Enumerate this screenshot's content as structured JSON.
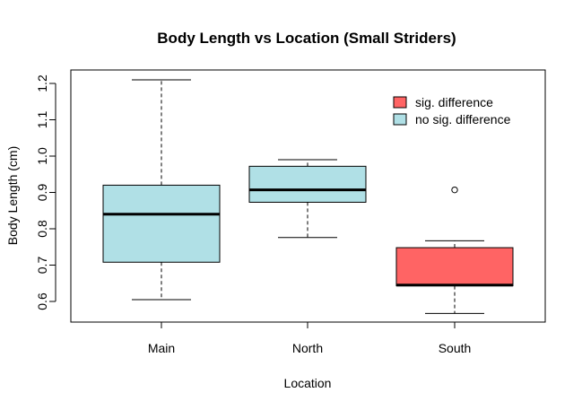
{
  "chart_data": {
    "type": "boxplot",
    "title": "Body Length vs Location (Small Striders)",
    "xlabel": "Location",
    "ylabel": "Body Length (cm)",
    "ylim": [
      0.56,
      1.22
    ],
    "yticks": [
      0.6,
      0.7,
      0.8,
      0.9,
      1.0,
      1.1,
      1.2
    ],
    "ytick_labels": [
      "0.6",
      "0.7",
      "0.8",
      "0.9",
      "1.0",
      "1.1",
      "1.2"
    ],
    "categories": [
      "Main",
      "North",
      "South"
    ],
    "boxes": [
      {
        "category": "Main",
        "min": 0.605,
        "q1": 0.708,
        "median": 0.84,
        "q3": 0.92,
        "max": 1.21,
        "outliers": [],
        "group": "no sig. difference"
      },
      {
        "category": "North",
        "min": 0.776,
        "q1": 0.873,
        "median": 0.907,
        "q3": 0.972,
        "max": 0.99,
        "outliers": [],
        "group": "no sig. difference"
      },
      {
        "category": "South",
        "min": 0.567,
        "q1": 0.643,
        "median": 0.645,
        "q3": 0.748,
        "max": 0.767,
        "outliers": [
          0.907
        ],
        "group": "sig. difference"
      }
    ],
    "legend": {
      "position": "top-right",
      "entries": [
        {
          "label": "sig. difference",
          "color": "#ff6464"
        },
        {
          "label": "no sig. difference",
          "color": "#b0e0e6"
        }
      ]
    },
    "grid": false
  }
}
